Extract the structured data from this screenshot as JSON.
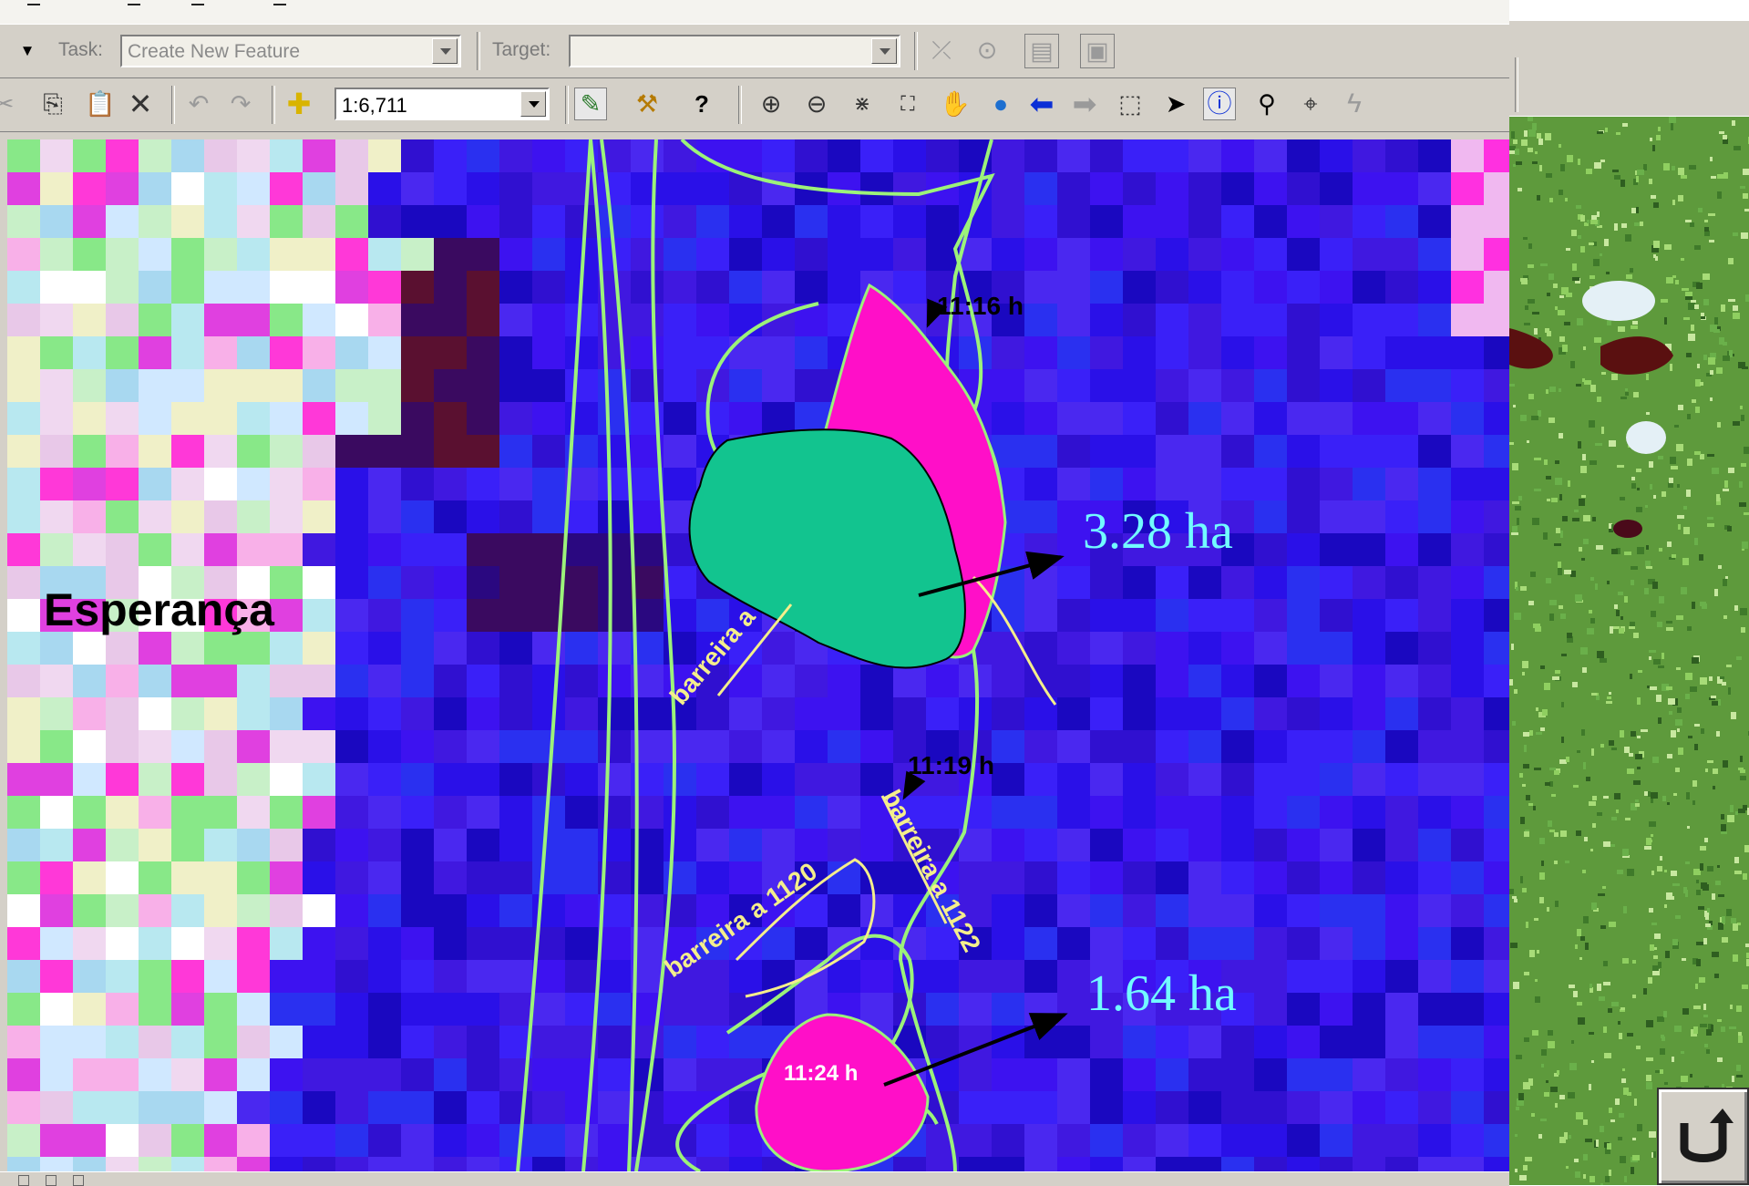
{
  "editor_toolbar": {
    "task_label": "Task:",
    "task_value": "Create New Feature",
    "target_label": "Target:",
    "target_value": ""
  },
  "tools_toolbar": {
    "scale_value": "1:6,711",
    "icons": [
      "cut-icon",
      "copy-icon",
      "paste-icon",
      "delete-icon",
      "undo-icon",
      "redo-icon",
      "add-data-icon",
      "scale-dropdown",
      "editor-icon",
      "arctoolbox-icon",
      "whats-this-icon",
      "zoom-in-icon",
      "zoom-out-icon",
      "fixed-zoom-in-icon",
      "fixed-zoom-out-icon",
      "pan-icon",
      "full-extent-icon",
      "back-extent-icon",
      "forward-extent-icon",
      "select-features-icon",
      "select-elements-icon",
      "identify-icon",
      "find-icon",
      "go-to-xy-icon",
      "hyperlink-icon"
    ]
  },
  "map": {
    "place_label": "Esperança",
    "area_labels": [
      "3.28 ha",
      "1.64 ha"
    ],
    "time_labels": [
      "11:16 h",
      "11:19 h",
      "11:24 h"
    ],
    "barrier_labels": [
      "barreira a",
      "barreira a 1120",
      "barreira a 1122"
    ],
    "colors": {
      "water": "#3d12f0",
      "track_line": "#9cf27a",
      "barrier_line": "#f4ee8c",
      "burn_area": "#ff0fc8",
      "highlight_area": "#12c48f",
      "annotation_text": "#72fbff",
      "arrow": "#000000"
    }
  },
  "side_panel": {
    "return_icon": "return-arrow-icon"
  }
}
